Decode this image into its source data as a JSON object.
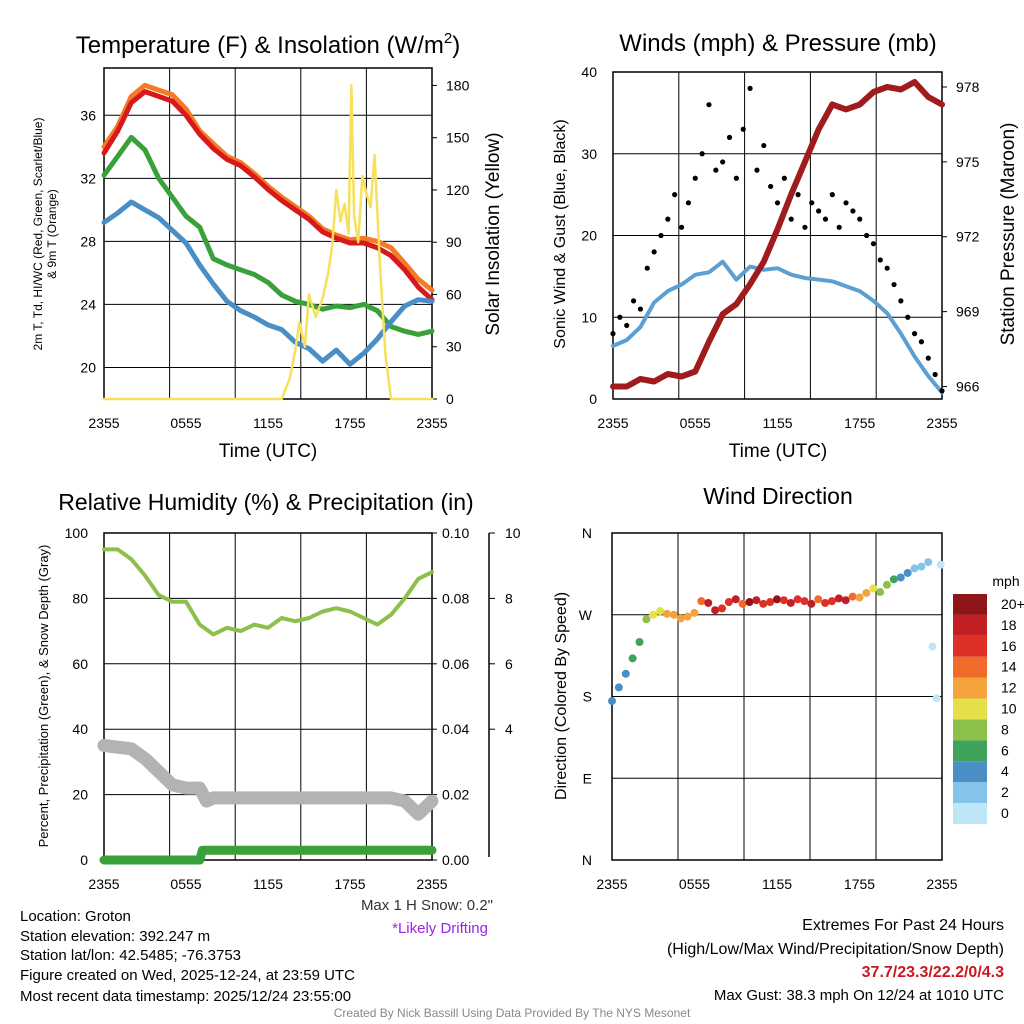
{
  "colors": {
    "temp": "#d7191c",
    "temp9m": "#f47a25",
    "dewpoint": "#3aa13a",
    "windchill": "#4a8ec6",
    "solar": "#f7e15c",
    "wind": "#5c9fd3",
    "gust": "#000000",
    "pressure": "#a01b1b",
    "rh": "#8cc04b",
    "precip": "#3aa13a",
    "snow": "#b3b3b3",
    "extremes": "#c8191e",
    "drifting": "#a020f0",
    "credit": "#888888"
  },
  "chart_data": [
    {
      "id": "temperature",
      "type": "line",
      "title": "Temperature (F) & Insolation (W/m²)",
      "title_main": "Temperature (F) & Insolation (W/m",
      "title_sup": "2",
      "title_end": ")",
      "xlabel": "Time (UTC)",
      "ylabel_lines": [
        "2m T, Td, HI/WC (Red, Green, Scarlet/Blue)",
        "& 9m T (Orange)"
      ],
      "y2label": "Solar Insolation (Yellow)",
      "x_ticks": [
        "2355",
        "0555",
        "1155",
        "1755",
        "2355"
      ],
      "x_range": [
        0,
        24
      ],
      "ylim": [
        18,
        39
      ],
      "y2lim": [
        0,
        190
      ],
      "y_ticks": [
        20,
        24,
        28,
        32,
        36
      ],
      "y2_ticks": [
        0,
        30,
        60,
        90,
        120,
        150,
        180
      ],
      "series": [
        {
          "name": "9m T",
          "axis": "y",
          "color_key": "temp9m",
          "x": [
            0,
            1,
            2,
            3,
            4,
            5,
            6,
            7,
            8,
            9,
            10,
            11,
            12,
            13,
            14,
            15,
            16,
            17,
            18,
            19,
            20,
            21,
            22,
            23,
            24
          ],
          "values": [
            34.0,
            35.3,
            37.2,
            37.9,
            37.6,
            37.3,
            36.4,
            35.0,
            34.2,
            33.4,
            33.0,
            32.3,
            31.5,
            30.8,
            30.2,
            29.6,
            28.8,
            28.4,
            28.1,
            28.2,
            28.0,
            27.6,
            26.6,
            25.6,
            24.9
          ]
        },
        {
          "name": "2m T",
          "axis": "y",
          "color_key": "temp",
          "x": [
            0,
            1,
            2,
            3,
            4,
            5,
            6,
            7,
            8,
            9,
            10,
            11,
            12,
            13,
            14,
            15,
            16,
            17,
            18,
            19,
            20,
            21,
            22,
            23,
            24
          ],
          "values": [
            33.6,
            35.0,
            36.8,
            37.5,
            37.2,
            36.9,
            36.0,
            34.8,
            33.9,
            33.2,
            32.8,
            32.1,
            31.3,
            30.6,
            30.0,
            29.4,
            28.6,
            28.2,
            27.9,
            27.9,
            27.6,
            27.1,
            26.2,
            25.1,
            24.3
          ]
        },
        {
          "name": "Td",
          "axis": "y",
          "color_key": "dewpoint",
          "x": [
            0,
            1,
            2,
            3,
            4,
            5,
            6,
            7,
            8,
            9,
            10,
            11,
            12,
            13,
            14,
            15,
            16,
            17,
            18,
            19,
            20,
            21,
            22,
            23,
            24
          ],
          "values": [
            32.2,
            33.4,
            34.6,
            33.8,
            32.0,
            30.8,
            29.6,
            28.9,
            26.9,
            26.5,
            26.2,
            25.9,
            25.4,
            24.6,
            24.2,
            24.0,
            23.7,
            23.9,
            23.8,
            24.0,
            23.6,
            22.6,
            22.3,
            22.1,
            22.3
          ]
        },
        {
          "name": "WC",
          "axis": "y",
          "color_key": "windchill",
          "x": [
            0,
            1,
            2,
            3,
            4,
            5,
            6,
            7,
            8,
            9,
            10,
            11,
            12,
            13,
            14,
            15,
            16,
            17,
            18,
            19,
            20,
            21,
            22,
            23,
            24
          ],
          "values": [
            29.2,
            29.8,
            30.5,
            30.0,
            29.5,
            28.7,
            27.9,
            26.5,
            25.3,
            24.2,
            23.6,
            23.2,
            22.7,
            22.4,
            21.6,
            21.2,
            20.4,
            21.1,
            20.2,
            20.9,
            21.8,
            22.9,
            23.9,
            24.3,
            24.2
          ]
        },
        {
          "name": "Solar",
          "axis": "y2",
          "color_key": "solar",
          "x": [
            0,
            13,
            13.6,
            14,
            14.3,
            14.7,
            15,
            15.5,
            16,
            16.4,
            16.7,
            17,
            17.3,
            17.6,
            17.9,
            18.1,
            18.3,
            18.6,
            18.9,
            19.2,
            19.5,
            19.8,
            20.2,
            20.6,
            21,
            24
          ],
          "values": [
            0,
            0,
            12,
            28,
            44,
            30,
            60,
            47,
            58,
            72,
            88,
            120,
            102,
            112,
            95,
            180,
            105,
            90,
            128,
            118,
            110,
            140,
            75,
            25,
            0,
            0
          ]
        }
      ]
    },
    {
      "id": "winds",
      "type": "line",
      "title": "Winds (mph) & Pressure (mb)",
      "xlabel": "Time (UTC)",
      "ylabel": "Sonic Wind & Gust (Blue, Black)",
      "y2label": "Station Pressure (Maroon)",
      "x_ticks": [
        "2355",
        "0555",
        "1155",
        "1755",
        "2355"
      ],
      "x_range": [
        0,
        24
      ],
      "ylim": [
        0,
        40
      ],
      "y2lim": [
        965.5,
        978.6
      ],
      "y_ticks": [
        0,
        10,
        20,
        30,
        40
      ],
      "y2_ticks": [
        966,
        969,
        972,
        975,
        978
      ],
      "series": [
        {
          "name": "Sonic Wind",
          "axis": "y",
          "color_key": "wind",
          "x": [
            0,
            1,
            2,
            3,
            4,
            5,
            6,
            7,
            8,
            9,
            10,
            11,
            12,
            13,
            14,
            15,
            16,
            17,
            18,
            19,
            20,
            21,
            22,
            23,
            24
          ],
          "values": [
            6.5,
            7.2,
            8.8,
            11.8,
            13.2,
            14.0,
            15.2,
            15.5,
            16.8,
            14.6,
            16.2,
            15.8,
            16.0,
            15.2,
            14.8,
            14.6,
            14.4,
            13.8,
            13.2,
            12.0,
            10.5,
            8.0,
            5.2,
            2.8,
            0.8
          ]
        },
        {
          "name": "Gust",
          "axis": "y",
          "type": "scatter",
          "color_key": "gust",
          "x": [
            0,
            0.5,
            1,
            1.5,
            2,
            2.5,
            3,
            3.5,
            4,
            4.5,
            5,
            5.5,
            6,
            6.5,
            7,
            7.5,
            8,
            8.5,
            9,
            9.5,
            10,
            10.5,
            11,
            11.5,
            12,
            12.5,
            13,
            13.5,
            14,
            14.5,
            15,
            15.5,
            16,
            16.5,
            17,
            17.5,
            18,
            18.5,
            19,
            19.5,
            20,
            20.5,
            21,
            21.5,
            22,
            22.5,
            23,
            23.5,
            24
          ],
          "values": [
            8,
            10,
            9,
            12,
            11,
            16,
            18,
            20,
            22,
            25,
            21,
            24,
            27,
            30,
            36,
            28,
            29,
            32,
            27,
            33,
            38,
            28,
            31,
            26,
            24,
            27,
            22,
            25,
            21,
            24,
            23,
            22,
            25,
            21,
            24,
            23,
            22,
            20,
            19,
            17,
            16,
            14,
            12,
            10,
            8,
            7,
            5,
            3,
            1
          ]
        },
        {
          "name": "Pressure",
          "axis": "y2",
          "color_key": "pressure",
          "x": [
            0,
            1,
            2,
            3,
            4,
            5,
            6,
            7,
            8,
            9,
            10,
            11,
            12,
            13,
            14,
            15,
            16,
            17,
            18,
            19,
            20,
            21,
            22,
            23,
            24
          ],
          "values": [
            966.0,
            966.0,
            966.3,
            966.2,
            966.5,
            966.4,
            966.6,
            967.8,
            968.9,
            969.3,
            970.1,
            971.0,
            972.3,
            973.7,
            975.0,
            976.3,
            977.3,
            977.1,
            977.3,
            977.8,
            978.0,
            977.9,
            978.2,
            977.6,
            977.3
          ]
        }
      ]
    },
    {
      "id": "humidity",
      "type": "line",
      "title": "Relative Humidity (%) & Precipitation (in)",
      "ylabel": "Percent, Precipitation (Green), & Snow Depth (Gray)",
      "x_ticks": [
        "2355",
        "0555",
        "1155",
        "1755",
        "2355"
      ],
      "x_range": [
        0,
        24
      ],
      "ylim": [
        0,
        100
      ],
      "y2lim": [
        0,
        0.1
      ],
      "y3lim": [
        0,
        10
      ],
      "y_ticks": [
        0,
        20,
        40,
        60,
        80,
        100
      ],
      "y2_ticks": [
        "0.00",
        "0.02",
        "0.04",
        "0.06",
        "0.08",
        "0.10"
      ],
      "y3_ticks": [
        4,
        6,
        8,
        10
      ],
      "series": [
        {
          "name": "RH",
          "axis": "y",
          "color_key": "rh",
          "x": [
            0,
            1,
            2,
            3,
            4,
            5,
            6,
            7,
            8,
            9,
            10,
            11,
            12,
            13,
            14,
            15,
            16,
            17,
            18,
            19,
            20,
            21,
            22,
            23,
            24
          ],
          "values": [
            95,
            95,
            92,
            87,
            81,
            79,
            79,
            72,
            69,
            71,
            70,
            72,
            71,
            74,
            73,
            74,
            76,
            77,
            76,
            74,
            72,
            75,
            80,
            86,
            88
          ]
        },
        {
          "name": "Precipitation",
          "axis": "y2",
          "color_key": "precip",
          "x": [
            0,
            7,
            7.2,
            24
          ],
          "values": [
            0.0,
            0.0,
            0.003,
            0.003
          ]
        },
        {
          "name": "Snow Depth",
          "axis": "y3",
          "color_key": "snow",
          "x": [
            0,
            2,
            3,
            4,
            5,
            6,
            7,
            7.5,
            8,
            9,
            10,
            11,
            12,
            13,
            14,
            15,
            16,
            17,
            18,
            19,
            20,
            21,
            22,
            23,
            24
          ],
          "values": [
            3.5,
            3.4,
            3.1,
            2.7,
            2.3,
            2.2,
            2.2,
            1.8,
            1.9,
            1.9,
            1.9,
            1.9,
            1.9,
            1.9,
            1.9,
            1.9,
            1.9,
            1.9,
            1.9,
            1.9,
            1.9,
            1.9,
            1.8,
            1.4,
            1.8
          ]
        }
      ]
    },
    {
      "id": "wind-direction",
      "type": "scatter",
      "title": "Wind Direction",
      "ylabel": "Direction (Colored By Speed)",
      "x_ticks": [
        "2355",
        "0555",
        "1155",
        "1755",
        "2355"
      ],
      "y_ticks": [
        "N",
        "E",
        "S",
        "W",
        "N"
      ],
      "x_range": [
        0,
        24
      ],
      "ylim": [
        0,
        360
      ],
      "legend_title": "mph",
      "legend_labels": [
        "0",
        "2",
        "4",
        "6",
        "8",
        "10",
        "12",
        "14",
        "16",
        "18",
        "20+"
      ],
      "legend_colors": [
        "#bfe6f7",
        "#85c4ea",
        "#4a8ec6",
        "#3fa35c",
        "#8cc04b",
        "#e5df4a",
        "#f4a33c",
        "#f06a2a",
        "#de3027",
        "#c11f24",
        "#8e1518"
      ],
      "x": [
        0,
        0.5,
        1,
        1.5,
        2,
        2.5,
        3,
        3.5,
        4,
        4.5,
        5,
        5.5,
        6,
        6.5,
        7,
        7.5,
        8,
        8.5,
        9,
        9.5,
        10,
        10.5,
        11,
        11.5,
        12,
        12.5,
        13,
        13.5,
        14,
        14.5,
        15,
        15.5,
        16,
        16.5,
        17,
        17.5,
        18,
        18.5,
        19,
        19.5,
        20,
        20.5,
        21,
        21.5,
        22,
        22.5,
        23,
        23.3,
        23.6,
        23.9
      ],
      "values": [
        175,
        190,
        205,
        222,
        240,
        265,
        270,
        274,
        271,
        270,
        266,
        268,
        272,
        285,
        283,
        275,
        277,
        284,
        287,
        282,
        284,
        286,
        282,
        284,
        287,
        286,
        283,
        287,
        285,
        282,
        287,
        283,
        285,
        288,
        286,
        290,
        289,
        294,
        299,
        295,
        303,
        309,
        311,
        316,
        321,
        323,
        328,
        235,
        178,
        325
      ],
      "speeds": [
        4,
        4,
        5,
        6,
        7,
        9,
        10,
        11,
        12,
        12,
        13,
        12,
        13,
        14,
        19,
        18,
        16,
        17,
        19,
        15,
        20,
        18,
        17,
        16,
        20,
        17,
        18,
        16,
        17,
        18,
        15,
        16,
        17,
        18,
        19,
        14,
        13,
        12,
        10,
        9,
        8,
        6,
        5,
        4,
        3,
        2,
        2,
        1,
        1,
        1
      ]
    }
  ],
  "info": {
    "location": "Location: Groton",
    "elevation": "Station elevation: 392.247 m",
    "latlon": "Station lat/lon: 42.5485; -76.3753",
    "created": "Figure created on Wed, 2025-12-24, at 23:59 UTC",
    "recent": "Most recent data timestamp: 2025/12/24 23:55:00",
    "max_snow": "Max 1 H Snow: 0.2\"",
    "drifting": "*Likely Drifting",
    "extremes_title": "Extremes For Past 24 Hours",
    "extremes_sub": "(High/Low/Max Wind/Precipitation/Snow Depth)",
    "extremes_values": "37.7/23.3/22.2/0/4.3",
    "max_gust": "Max Gust: 38.3 mph On 12/24 at 1010 UTC",
    "credit": "Created By Nick Bassill Using Data Provided By The NYS Mesonet"
  }
}
